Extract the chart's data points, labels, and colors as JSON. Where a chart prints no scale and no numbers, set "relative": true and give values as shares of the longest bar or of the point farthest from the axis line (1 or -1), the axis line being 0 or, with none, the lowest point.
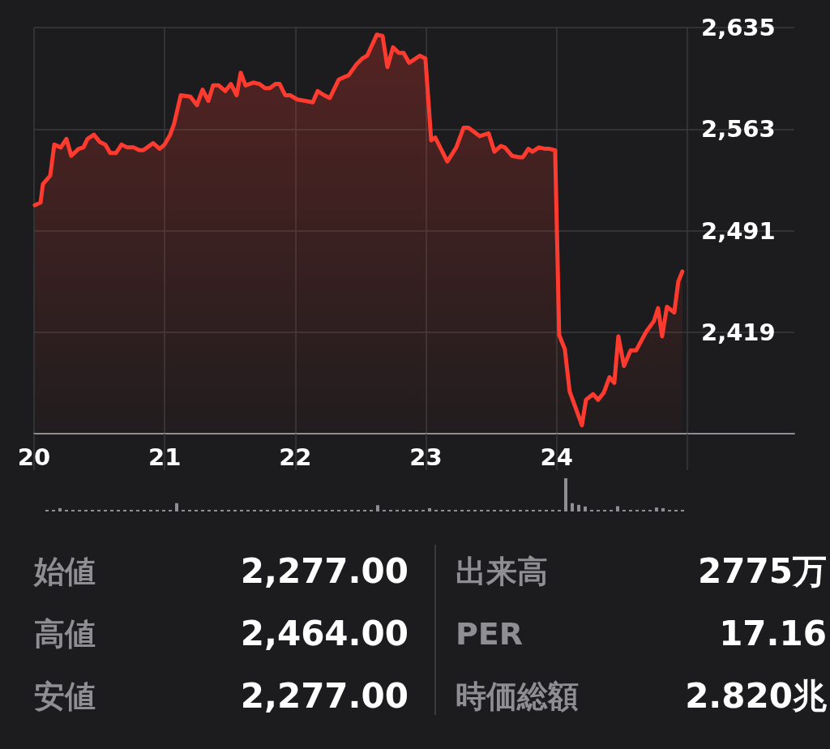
{
  "chart_data": [
    {
      "type": "area",
      "color": "#ff3b30",
      "grid": true,
      "marker": "none",
      "line_style": "solid",
      "x": [
        20.006,
        20.05,
        20.068,
        20.124,
        20.155,
        20.205,
        20.248,
        20.285,
        20.341,
        20.378,
        20.409,
        20.459,
        20.502,
        20.546,
        20.583,
        20.627,
        20.67,
        20.713,
        20.763,
        20.806,
        20.837,
        20.912,
        20.962,
        20.999,
        21.042,
        21.073,
        21.123,
        21.197,
        21.247,
        21.29,
        21.334,
        21.371,
        21.414,
        21.464,
        21.507,
        21.551,
        21.582,
        21.619,
        21.681,
        21.725,
        21.768,
        21.805,
        21.849,
        21.88,
        21.923,
        21.96,
        22.016,
        22.078,
        22.134,
        22.171,
        22.221,
        22.264,
        22.332,
        22.376,
        22.407,
        22.469,
        22.512,
        22.55,
        22.624,
        22.668,
        22.705,
        22.748,
        22.792,
        22.829,
        22.872,
        22.953,
        22.996,
        23.04,
        23.071,
        23.164,
        23.232,
        23.288,
        23.325,
        23.412,
        23.48,
        23.524,
        23.573,
        23.604,
        23.66,
        23.71,
        23.741,
        23.784,
        23.815,
        23.865,
        23.914,
        23.945,
        23.989,
        24.02,
        24.063,
        24.1,
        24.194,
        24.225,
        24.28,
        24.318,
        24.361,
        24.405,
        24.442,
        24.473,
        24.516,
        24.566,
        24.609,
        24.684,
        24.746,
        24.777,
        24.808,
        24.845,
        24.901,
        24.932,
        24.963
      ],
      "values": [
        2509,
        2511,
        2524,
        2530,
        2552,
        2550,
        2556,
        2544,
        2549,
        2550,
        2556,
        2559,
        2554,
        2552,
        2546,
        2546,
        2552,
        2550,
        2550,
        2548,
        2548,
        2553,
        2549,
        2552,
        2559,
        2567,
        2587,
        2586,
        2580,
        2591,
        2583,
        2594,
        2594,
        2590,
        2595,
        2587,
        2603,
        2594,
        2596,
        2595,
        2592,
        2592,
        2595,
        2595,
        2587,
        2587,
        2584,
        2583,
        2582,
        2590,
        2587,
        2585,
        2598,
        2600,
        2601,
        2609,
        2613,
        2615,
        2630,
        2629,
        2607,
        2621,
        2617,
        2617,
        2610,
        2615,
        2613,
        2555,
        2557,
        2540,
        2550,
        2564,
        2564,
        2558,
        2560,
        2547,
        2551,
        2550,
        2544,
        2543,
        2543,
        2549,
        2547,
        2550,
        2549,
        2549,
        2548,
        2417,
        2407,
        2377,
        2353,
        2371,
        2375,
        2371,
        2376,
        2387,
        2383,
        2416,
        2395,
        2406,
        2406,
        2419,
        2427,
        2436,
        2416,
        2437,
        2433,
        2455,
        2462
      ],
      "xlim": [
        20,
        25.82
      ],
      "xticks": [
        20,
        21,
        22,
        23,
        24,
        {
          "value": 25,
          "label": null
        }
      ],
      "ylim": [
        2347,
        2635
      ],
      "yticks": [
        {
          "value": 2347,
          "label": null
        },
        {
          "value": 2419,
          "label": "2,419"
        },
        {
          "value": 2491,
          "label": "2,491"
        },
        {
          "value": 2563,
          "label": "2,563"
        },
        {
          "value": 2635,
          "label": "2,635"
        }
      ]
    },
    {
      "type": "bar",
      "relative": true,
      "color": "#8e8e93",
      "categories": [
        null,
        null,
        null,
        null,
        null,
        null,
        null,
        null,
        null,
        null,
        null,
        null,
        null,
        null,
        null,
        null,
        null,
        null,
        null,
        null,
        null,
        null,
        null,
        null,
        null,
        null,
        null,
        null,
        null,
        null,
        null,
        null,
        null,
        null,
        null,
        null,
        null,
        null,
        null,
        null,
        null,
        null,
        null,
        null,
        null,
        null,
        null,
        null,
        null,
        null,
        null,
        null,
        null,
        null,
        null,
        null,
        null,
        null,
        null,
        null,
        null,
        null,
        null,
        null,
        null,
        null,
        null,
        null,
        null,
        null,
        null,
        null,
        null,
        null,
        null,
        null,
        null,
        null,
        null,
        null,
        null,
        null,
        null,
        null,
        null,
        null,
        null,
        null,
        null,
        null,
        null,
        null,
        null,
        null,
        null,
        null,
        null,
        null,
        null
      ],
      "values": [
        0.05,
        0.05,
        0.1,
        0.05,
        0.05,
        0.05,
        0.05,
        0.05,
        0.05,
        0.05,
        0.05,
        0.05,
        0.05,
        0.05,
        0.05,
        0.05,
        0.05,
        0.05,
        0.05,
        0.05,
        0.25,
        0.05,
        0.05,
        0.05,
        0.05,
        0.05,
        0.05,
        0.05,
        0.05,
        0.05,
        0.05,
        0.05,
        0.05,
        0.05,
        0.05,
        0.05,
        0.05,
        0.05,
        0.05,
        0.05,
        0.05,
        0.05,
        0.05,
        0.05,
        0.05,
        0.05,
        0.05,
        0.05,
        0.05,
        0.05,
        0.05,
        0.19,
        0.05,
        0.05,
        0.05,
        0.05,
        0.05,
        0.05,
        0.05,
        0.1,
        0.05,
        0.05,
        0.05,
        0.05,
        0.05,
        0.05,
        0.05,
        0.05,
        0.05,
        0.05,
        0.05,
        0.05,
        0.05,
        0.05,
        0.05,
        0.05,
        0.05,
        0.05,
        0.05,
        0.05,
        1,
        0.25,
        0.2,
        0.15,
        0.05,
        0.05,
        0.05,
        0.05,
        0.16,
        0.05,
        0.05,
        0.05,
        0.05,
        0.05,
        0.12,
        0.1,
        0.05,
        0.05,
        0.05
      ]
    },
    {
      "type": "other",
      "annotations": [
        "始値",
        "2,277.00",
        "高値",
        "2,464.00",
        "安値",
        "2,277.00",
        "出来高",
        "2775万",
        "PER",
        "17.16",
        "時価総額",
        "2.820兆"
      ]
    }
  ]
}
